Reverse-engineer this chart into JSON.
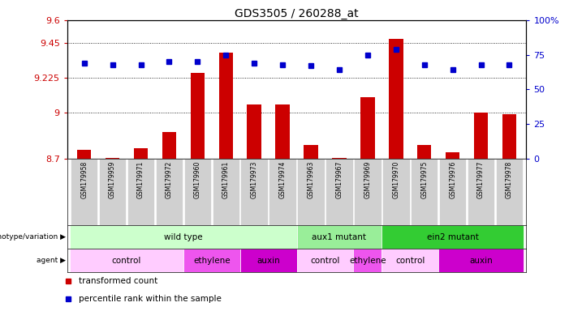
{
  "title": "GDS3505 / 260288_at",
  "samples": [
    "GSM179958",
    "GSM179959",
    "GSM179971",
    "GSM179972",
    "GSM179960",
    "GSM179961",
    "GSM179973",
    "GSM179974",
    "GSM179963",
    "GSM179967",
    "GSM179969",
    "GSM179970",
    "GSM179975",
    "GSM179976",
    "GSM179977",
    "GSM179978"
  ],
  "bar_values": [
    8.755,
    8.705,
    8.765,
    8.875,
    9.26,
    9.39,
    9.05,
    9.05,
    8.79,
    8.705,
    9.1,
    9.48,
    8.79,
    8.74,
    9.0,
    8.99
  ],
  "dot_values": [
    69,
    68,
    68,
    70,
    70,
    75,
    69,
    68,
    67,
    64,
    75,
    79,
    68,
    64,
    68,
    68
  ],
  "ymin": 8.7,
  "ymax": 9.6,
  "yticks": [
    8.7,
    9.0,
    9.225,
    9.45,
    9.6
  ],
  "ytick_labels": [
    "8.7",
    "9",
    "9.225",
    "9.45",
    "9.6"
  ],
  "y2ticks": [
    0,
    25,
    50,
    75,
    100
  ],
  "y2tick_labels": [
    "0",
    "25",
    "50",
    "75",
    "100%"
  ],
  "bar_color": "#cc0000",
  "dot_color": "#0000cc",
  "hline_values": [
    8.7,
    9.0,
    9.225,
    9.45
  ],
  "groups": [
    {
      "label": "wild type",
      "start": 0,
      "end": 8,
      "color": "#ccffcc"
    },
    {
      "label": "aux1 mutant",
      "start": 8,
      "end": 11,
      "color": "#99ee99"
    },
    {
      "label": "ein2 mutant",
      "start": 11,
      "end": 16,
      "color": "#33cc33"
    }
  ],
  "agents": [
    {
      "label": "control",
      "start": 0,
      "end": 4,
      "color": "#ffccff"
    },
    {
      "label": "ethylene",
      "start": 4,
      "end": 6,
      "color": "#ee55ee"
    },
    {
      "label": "auxin",
      "start": 6,
      "end": 8,
      "color": "#cc00cc"
    },
    {
      "label": "control",
      "start": 8,
      "end": 10,
      "color": "#ffccff"
    },
    {
      "label": "ethylene",
      "start": 10,
      "end": 11,
      "color": "#ee55ee"
    },
    {
      "label": "control",
      "start": 11,
      "end": 13,
      "color": "#ffccff"
    },
    {
      "label": "auxin",
      "start": 13,
      "end": 16,
      "color": "#cc00cc"
    }
  ],
  "legend_items": [
    {
      "label": "transformed count",
      "color": "#cc0000"
    },
    {
      "label": "percentile rank within the sample",
      "color": "#0000cc"
    }
  ]
}
